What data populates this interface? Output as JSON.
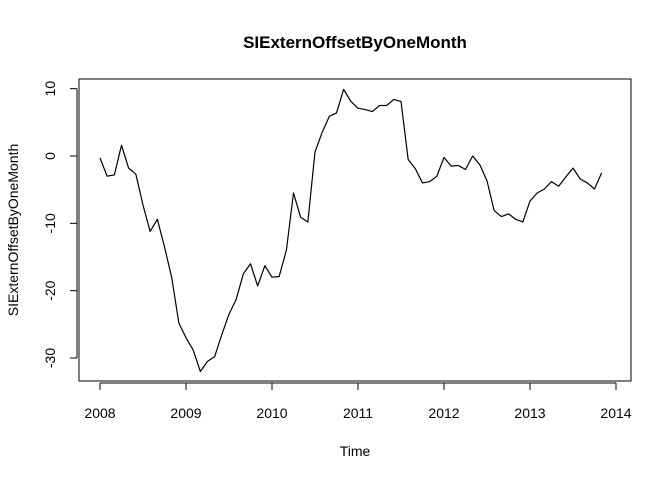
{
  "chart_data": {
    "type": "line",
    "title": "SIExternOffsetByOneMonth",
    "xlabel": "Time",
    "ylabel": "SIExternOffsetByOneMonth",
    "xlim": [
      2008,
      2014
    ],
    "ylim": [
      -33.5,
      11
    ],
    "x_ticks": [
      "2008",
      "2009",
      "2010",
      "2011",
      "2012",
      "2013",
      "2014"
    ],
    "y_ticks": [
      "-30",
      "-20",
      "-10",
      "0",
      "10"
    ],
    "grid": false,
    "line_color": "#000000",
    "series": [
      {
        "x": [
          2008.0,
          2008.083,
          2008.167,
          2008.25,
          2008.333,
          2008.417,
          2008.5,
          2008.583,
          2008.667,
          2008.75,
          2008.833,
          2008.917,
          2009.0,
          2009.083,
          2009.167,
          2009.25,
          2009.333,
          2009.417,
          2009.5,
          2009.583,
          2009.667,
          2009.75,
          2009.833,
          2009.917,
          2010.0,
          2010.083,
          2010.167,
          2010.25,
          2010.333,
          2010.417,
          2010.5,
          2010.583,
          2010.667,
          2010.75,
          2010.833,
          2010.917,
          2011.0,
          2011.083,
          2011.167,
          2011.25,
          2011.333,
          2011.417,
          2011.5,
          2011.583,
          2011.667,
          2011.75,
          2011.833,
          2011.917,
          2012.0,
          2012.083,
          2012.167,
          2012.25,
          2012.333,
          2012.417,
          2012.5,
          2012.583,
          2012.667,
          2012.75,
          2012.833,
          2012.917,
          2013.0,
          2013.083,
          2013.167,
          2013.25,
          2013.333,
          2013.417,
          2013.5,
          2013.583,
          2013.667,
          2013.75,
          2013.833
        ],
        "values": [
          -0.3,
          -3.0,
          -2.8,
          1.6,
          -1.8,
          -2.7,
          -7.3,
          -11.2,
          -9.4,
          -13.5,
          -18.0,
          -24.8,
          -27.0,
          -28.8,
          -32.0,
          -30.5,
          -29.8,
          -26.5,
          -23.5,
          -21.3,
          -17.5,
          -16.0,
          -19.3,
          -16.3,
          -18.0,
          -17.9,
          -14.0,
          -5.5,
          -9.1,
          -9.8,
          0.6,
          3.5,
          5.9,
          6.4,
          9.9,
          8.1,
          7.1,
          6.9,
          6.6,
          7.5,
          7.5,
          8.4,
          8.1,
          -0.5,
          -1.9,
          -4.0,
          -3.8,
          -3.0,
          -0.2,
          -1.5,
          -1.4,
          -2.0,
          0.0,
          -1.3,
          -3.7,
          -8.1,
          -9.0,
          -8.6,
          -9.4,
          -9.8,
          -6.7,
          -5.5,
          -4.9,
          -3.8,
          -4.5,
          -3.1,
          -1.8,
          -3.4,
          -4.0,
          -4.9,
          -2.5
        ]
      }
    ]
  }
}
